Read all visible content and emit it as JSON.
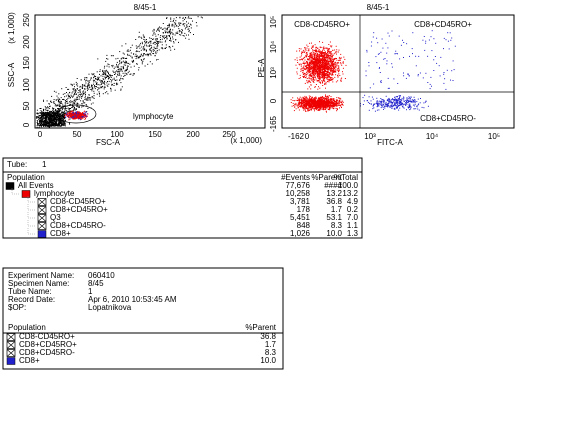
{
  "plots": [
    {
      "title": "8/45-1",
      "x_label": "FSC-A",
      "y_label": "SSC-A",
      "x_unit": "(x 1,000)",
      "y_unit": "(x 1,000)",
      "x_ticks": [
        "0",
        "50",
        "100",
        "150",
        "200",
        "250"
      ],
      "y_ticks": [
        "250",
        "200",
        "150",
        "100",
        "50",
        "0"
      ],
      "gate_label": "lymphocyte"
    },
    {
      "title": "8/45-1",
      "x_label": "FITC-A",
      "y_label": "PE-A",
      "x_ticks": [
        "-162",
        "0",
        "10³",
        "10⁴",
        "10⁵"
      ],
      "y_ticks": [
        "10⁵",
        "10⁴",
        "10³",
        "0",
        "-165"
      ],
      "quadrants": [
        "CD8-CD45RO+",
        "CD8+CD45RO+",
        "CD8+CD45RO-"
      ]
    }
  ],
  "hierarchy": {
    "tube_label": "Tube:",
    "tube_value": "1",
    "headers": [
      "Population",
      "#Events",
      "%Parent",
      "%Total"
    ],
    "rows": [
      [
        "All Events",
        "77,676",
        "####",
        "100.0"
      ],
      [
        "lymphocyte",
        "10,258",
        "13.2",
        "13.2"
      ],
      [
        "CD8-CD45RO+",
        "3,781",
        "36.8",
        "4.9"
      ],
      [
        "CD8+CD45RO+",
        "178",
        "1.7",
        "0.2"
      ],
      [
        "Q3",
        "5,451",
        "53.1",
        "7.0"
      ],
      [
        "CD8+CD45RO-",
        "848",
        "8.3",
        "1.1"
      ],
      [
        "CD8+",
        "1,026",
        "10.0",
        "1.3"
      ]
    ]
  },
  "specimen": {
    "fields": [
      [
        "Experiment Name:",
        "060410"
      ],
      [
        "Specimen Name:",
        "8/45"
      ],
      [
        "Tube Name:",
        "1"
      ],
      [
        "Record Date:",
        "Apr 6, 2010 10:53:45 AM"
      ],
      [
        "$OP:",
        "Lopatnikova"
      ]
    ],
    "headers": [
      "Population",
      "%Parent"
    ],
    "rows": [
      [
        "CD8-CD45RO+",
        "36.8"
      ],
      [
        "CD8+CD45RO+",
        "1.7"
      ],
      [
        "CD8+CD45RO-",
        "8.3"
      ],
      [
        "CD8+",
        "10.0"
      ]
    ]
  }
}
